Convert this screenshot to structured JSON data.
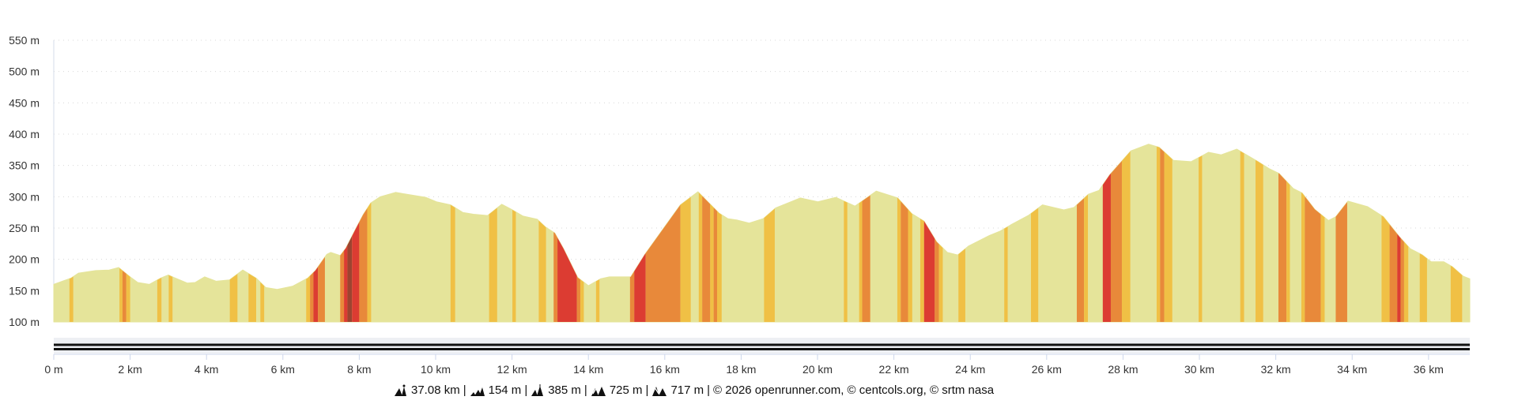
{
  "chart_data": {
    "type": "area",
    "xlabel": "",
    "ylabel": "",
    "xlim_km": [
      0,
      37.08
    ],
    "ylim_m": [
      100,
      550
    ],
    "grid": true,
    "y_ticks": [
      100,
      150,
      200,
      250,
      300,
      350,
      400,
      450,
      500,
      550
    ],
    "y_tick_labels": [
      "100 m",
      "150 m",
      "200 m",
      "250 m",
      "300 m",
      "350 m",
      "400 m",
      "450 m",
      "500 m",
      "550 m"
    ],
    "x_ticks": [
      0,
      2,
      4,
      6,
      8,
      10,
      12,
      14,
      16,
      18,
      20,
      22,
      24,
      26,
      28,
      30,
      32,
      34,
      36
    ],
    "x_tick_labels": [
      "0 m",
      "2 km",
      "4 km",
      "6 km",
      "8 km",
      "10 km",
      "12 km",
      "14 km",
      "16 km",
      "18 km",
      "20 km",
      "22 km",
      "24 km",
      "26 km",
      "28 km",
      "30 km",
      "32 km",
      "34 km",
      "36 km"
    ],
    "colors": {
      "base": "#e5e49a",
      "yellow": "#f0c045",
      "orange": "#e8893a",
      "red": "#dc3c32",
      "dark": "#9c4430"
    },
    "profile": [
      [
        0,
        160
      ],
      [
        0.45,
        170
      ],
      [
        0.65,
        178
      ],
      [
        1.1,
        182
      ],
      [
        1.45,
        183
      ],
      [
        1.7,
        187
      ],
      [
        2.0,
        172
      ],
      [
        2.2,
        163
      ],
      [
        2.5,
        160
      ],
      [
        2.8,
        170
      ],
      [
        3.0,
        175
      ],
      [
        3.15,
        171
      ],
      [
        3.5,
        162
      ],
      [
        3.7,
        163
      ],
      [
        3.95,
        172
      ],
      [
        4.25,
        165
      ],
      [
        4.6,
        167
      ],
      [
        4.95,
        183
      ],
      [
        5.3,
        170
      ],
      [
        5.55,
        155
      ],
      [
        5.85,
        152
      ],
      [
        6.25,
        157
      ],
      [
        6.65,
        170
      ],
      [
        6.85,
        182
      ],
      [
        7.15,
        208
      ],
      [
        7.25,
        211
      ],
      [
        7.5,
        206
      ],
      [
        7.65,
        218
      ],
      [
        7.9,
        248
      ],
      [
        8.1,
        271
      ],
      [
        8.3,
        290
      ],
      [
        8.55,
        300
      ],
      [
        8.95,
        307
      ],
      [
        9.74,
        299
      ],
      [
        10.02,
        292
      ],
      [
        10.39,
        287
      ],
      [
        10.71,
        275
      ],
      [
        10.99,
        272
      ],
      [
        11.36,
        270
      ],
      [
        11.73,
        288
      ],
      [
        12.01,
        279
      ],
      [
        12.29,
        269
      ],
      [
        12.66,
        264
      ],
      [
        12.89,
        251
      ],
      [
        13.12,
        242
      ],
      [
        13.35,
        217
      ],
      [
        13.72,
        171
      ],
      [
        14.0,
        158
      ],
      [
        14.32,
        169
      ],
      [
        14.55,
        172
      ],
      [
        15.11,
        172
      ],
      [
        15.48,
        208
      ],
      [
        16.41,
        287
      ],
      [
        16.87,
        308
      ],
      [
        17.42,
        274
      ],
      [
        17.65,
        265
      ],
      [
        17.88,
        263
      ],
      [
        18.21,
        258
      ],
      [
        18.58,
        265
      ],
      [
        18.9,
        282
      ],
      [
        19.55,
        298
      ],
      [
        20.01,
        292
      ],
      [
        20.48,
        299
      ],
      [
        20.98,
        285
      ],
      [
        21.54,
        309
      ],
      [
        22.1,
        298
      ],
      [
        22.47,
        273
      ],
      [
        22.79,
        261
      ],
      [
        23.12,
        228
      ],
      [
        23.4,
        211
      ],
      [
        23.67,
        207
      ],
      [
        23.95,
        221
      ],
      [
        24.5,
        238
      ],
      [
        24.78,
        245
      ],
      [
        25.06,
        255
      ],
      [
        25.52,
        270
      ],
      [
        25.89,
        287
      ],
      [
        26.45,
        279
      ],
      [
        26.72,
        283
      ],
      [
        27.09,
        304
      ],
      [
        27.37,
        310
      ],
      [
        27.65,
        335
      ],
      [
        28.2,
        373
      ],
      [
        28.67,
        384
      ],
      [
        28.95,
        379
      ],
      [
        29.32,
        358
      ],
      [
        29.78,
        356
      ],
      [
        30.24,
        371
      ],
      [
        30.57,
        367
      ],
      [
        30.98,
        376
      ],
      [
        31.54,
        356
      ],
      [
        31.82,
        345
      ],
      [
        32.09,
        337
      ],
      [
        32.46,
        313
      ],
      [
        32.69,
        306
      ],
      [
        33.02,
        280
      ],
      [
        33.38,
        262
      ],
      [
        33.57,
        268
      ],
      [
        33.89,
        293
      ],
      [
        34.41,
        284
      ],
      [
        34.82,
        268
      ],
      [
        35.24,
        236
      ],
      [
        35.52,
        217
      ],
      [
        35.84,
        207
      ],
      [
        36.07,
        196
      ],
      [
        36.4,
        196
      ],
      [
        36.63,
        188
      ],
      [
        36.91,
        173
      ],
      [
        37.08,
        169
      ]
    ],
    "slope_bands": [
      [
        0.41,
        0.51,
        "yellow"
      ],
      [
        1.72,
        1.8,
        "yellow"
      ],
      [
        1.8,
        1.9,
        "orange"
      ],
      [
        1.9,
        2.0,
        "yellow"
      ],
      [
        2.71,
        2.82,
        "yellow"
      ],
      [
        3.01,
        3.11,
        "yellow"
      ],
      [
        4.61,
        4.81,
        "yellow"
      ],
      [
        5.1,
        5.3,
        "yellow"
      ],
      [
        5.41,
        5.51,
        "yellow"
      ],
      [
        6.61,
        6.71,
        "yellow"
      ],
      [
        6.71,
        6.8,
        "orange"
      ],
      [
        6.8,
        6.92,
        "red"
      ],
      [
        6.92,
        7.1,
        "orange"
      ],
      [
        7.5,
        7.6,
        "orange"
      ],
      [
        7.6,
        7.69,
        "red"
      ],
      [
        7.69,
        7.81,
        "dark"
      ],
      [
        7.81,
        8.0,
        "red"
      ],
      [
        8.0,
        8.21,
        "orange"
      ],
      [
        8.21,
        8.31,
        "yellow"
      ],
      [
        10.39,
        10.51,
        "yellow"
      ],
      [
        11.4,
        11.61,
        "yellow"
      ],
      [
        12.01,
        12.1,
        "yellow"
      ],
      [
        12.7,
        12.89,
        "yellow"
      ],
      [
        13.09,
        13.19,
        "orange"
      ],
      [
        13.19,
        13.7,
        "red"
      ],
      [
        13.7,
        13.79,
        "orange"
      ],
      [
        13.79,
        13.88,
        "yellow"
      ],
      [
        14.2,
        14.29,
        "yellow"
      ],
      [
        15.09,
        15.2,
        "orange"
      ],
      [
        15.2,
        15.5,
        "red"
      ],
      [
        15.5,
        16.41,
        "orange"
      ],
      [
        16.41,
        16.68,
        "yellow"
      ],
      [
        16.89,
        16.98,
        "yellow"
      ],
      [
        16.98,
        17.19,
        "orange"
      ],
      [
        17.19,
        17.28,
        "yellow"
      ],
      [
        17.28,
        17.37,
        "orange"
      ],
      [
        17.37,
        17.49,
        "yellow"
      ],
      [
        18.6,
        18.88,
        "yellow"
      ],
      [
        20.69,
        20.78,
        "yellow"
      ],
      [
        21.09,
        21.17,
        "yellow"
      ],
      [
        21.17,
        21.38,
        "orange"
      ],
      [
        22.09,
        22.18,
        "yellow"
      ],
      [
        22.18,
        22.37,
        "orange"
      ],
      [
        22.37,
        22.48,
        "yellow"
      ],
      [
        22.69,
        22.79,
        "yellow"
      ],
      [
        22.79,
        23.07,
        "red"
      ],
      [
        23.07,
        23.18,
        "orange"
      ],
      [
        23.18,
        23.28,
        "yellow"
      ],
      [
        23.69,
        23.87,
        "yellow"
      ],
      [
        24.89,
        24.98,
        "yellow"
      ],
      [
        25.59,
        25.78,
        "yellow"
      ],
      [
        26.79,
        26.98,
        "orange"
      ],
      [
        26.98,
        27.08,
        "yellow"
      ],
      [
        27.47,
        27.68,
        "red"
      ],
      [
        27.68,
        27.97,
        "orange"
      ],
      [
        27.97,
        28.19,
        "yellow"
      ],
      [
        28.88,
        28.97,
        "yellow"
      ],
      [
        28.97,
        29.08,
        "orange"
      ],
      [
        29.08,
        29.29,
        "yellow"
      ],
      [
        29.98,
        30.07,
        "yellow"
      ],
      [
        31.07,
        31.17,
        "yellow"
      ],
      [
        31.47,
        31.67,
        "yellow"
      ],
      [
        32.07,
        32.28,
        "orange"
      ],
      [
        32.28,
        32.37,
        "yellow"
      ],
      [
        32.67,
        32.76,
        "yellow"
      ],
      [
        32.76,
        33.18,
        "orange"
      ],
      [
        33.18,
        33.28,
        "yellow"
      ],
      [
        33.57,
        33.87,
        "orange"
      ],
      [
        34.77,
        34.98,
        "yellow"
      ],
      [
        34.98,
        35.18,
        "orange"
      ],
      [
        35.18,
        35.27,
        "red"
      ],
      [
        35.27,
        35.36,
        "orange"
      ],
      [
        35.36,
        35.47,
        "yellow"
      ],
      [
        35.77,
        35.96,
        "yellow"
      ],
      [
        36.58,
        36.88,
        "yellow"
      ]
    ]
  },
  "footer": {
    "distance": "37.08 km",
    "min_altitude": "154 m",
    "max_altitude": "385 m",
    "ascent": "725 m",
    "descent": "717 m",
    "separator": "|",
    "credits": "© 2026 openrunner.com, © centcols.org, © srtm nasa",
    "icons": [
      "distance-icon",
      "min-altitude-icon",
      "max-altitude-icon",
      "ascent-icon",
      "descent-icon"
    ]
  }
}
